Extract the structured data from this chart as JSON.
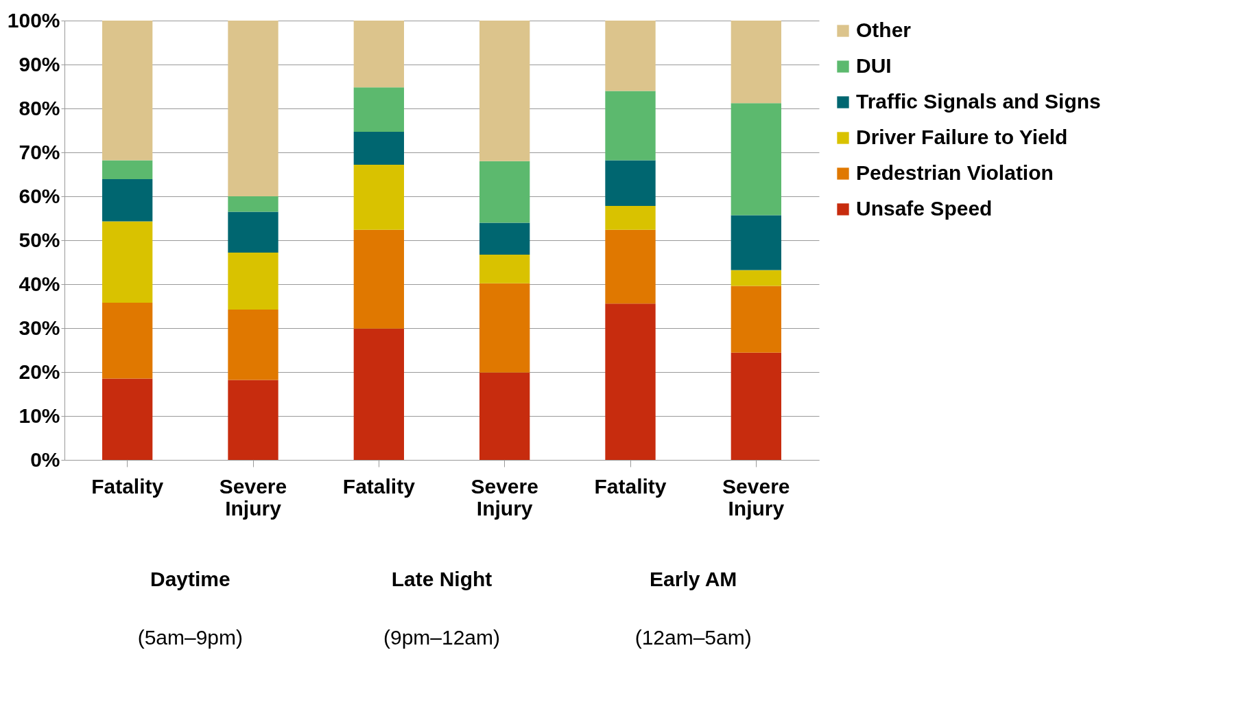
{
  "chart_data": {
    "type": "bar",
    "stacked": true,
    "categories": [
      "Fatality",
      "Severe Injury",
      "Fatality",
      "Severe Injury",
      "Fatality",
      "Severe Injury"
    ],
    "series": [
      {
        "name": "Unsafe Speed",
        "color": "#c72c0e",
        "values": [
          18.5,
          18.2,
          29.9,
          19.9,
          35.6,
          24.4
        ]
      },
      {
        "name": "Pedestrian Violation",
        "color": "#e07800",
        "values": [
          17.3,
          16.0,
          22.5,
          20.3,
          16.8,
          15.2
        ]
      },
      {
        "name": "Driver Failure to Yield",
        "color": "#d9c200",
        "values": [
          18.5,
          13.0,
          14.8,
          6.5,
          5.4,
          3.6
        ]
      },
      {
        "name": "Traffic Signals and Signs",
        "color": "#006670",
        "values": [
          9.6,
          9.3,
          7.5,
          7.3,
          10.4,
          12.5
        ]
      },
      {
        "name": "DUI",
        "color": "#5cb96e",
        "values": [
          4.3,
          3.5,
          10.1,
          14.0,
          15.8,
          25.5
        ]
      },
      {
        "name": "Other",
        "color": "#dcc48c",
        "values": [
          31.8,
          40.0,
          15.2,
          32.0,
          16.0,
          18.8
        ]
      }
    ],
    "ylim": [
      0,
      100
    ],
    "yticks": [
      {
        "value": 0,
        "label": "0%"
      },
      {
        "value": 10,
        "label": "10%"
      },
      {
        "value": 20,
        "label": "20%"
      },
      {
        "value": 30,
        "label": "30%"
      },
      {
        "value": 40,
        "label": "40%"
      },
      {
        "value": 50,
        "label": "50%"
      },
      {
        "value": 60,
        "label": "60%"
      },
      {
        "value": 70,
        "label": "70%"
      },
      {
        "value": 80,
        "label": "80%"
      },
      {
        "value": 90,
        "label": "90%"
      },
      {
        "value": 100,
        "label": "100%"
      }
    ],
    "annotations": [
      "Daytime",
      "(5am–9pm)",
      "Late Night",
      "(9pm–12am)",
      "Early AM",
      "(12am–5am)"
    ],
    "grid": "y",
    "legend": "right"
  }
}
